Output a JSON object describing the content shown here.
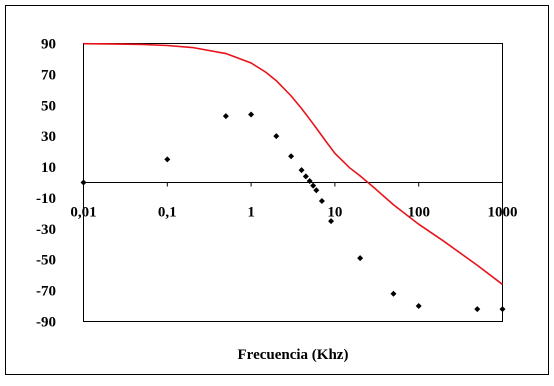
{
  "chart_data": {
    "type": "scatter",
    "title": "",
    "xlabel": "Frecuencia (Khz)",
    "ylabel": "",
    "x_scale": "log",
    "xlim": [
      0.01,
      1000
    ],
    "ylim": [
      -90,
      90
    ],
    "x_tick_labels": [
      "0,01",
      "0,1",
      "1",
      "10",
      "100",
      "1000"
    ],
    "x_tick_values": [
      0.01,
      0.1,
      1,
      10,
      100,
      1000
    ],
    "y_tick_values": [
      90,
      70,
      50,
      30,
      10,
      -10,
      -30,
      -50,
      -70,
      -90
    ],
    "y_tick_labels": [
      "90",
      "70",
      "50",
      "30",
      "10",
      "-10",
      "-30",
      "-50",
      "-70",
      "-90"
    ],
    "grid": false,
    "legend": "none",
    "series": [
      {
        "kind": "markers",
        "color": "#000000",
        "marker": "diamond",
        "x": [
          0.01,
          0.1,
          0.5,
          1,
          2,
          3,
          4,
          4.5,
          5,
          5.5,
          6,
          7,
          9,
          20,
          50,
          100,
          500,
          1000
        ],
        "y": [
          0,
          15,
          43,
          44,
          30,
          17,
          8,
          4,
          1,
          -2,
          -5,
          -12,
          -25,
          -49,
          -72,
          -80,
          -82,
          -82
        ]
      },
      {
        "kind": "line",
        "color": "#e8141b",
        "x": [
          0.01,
          0.02,
          0.05,
          0.1,
          0.2,
          0.5,
          1,
          1.5,
          2,
          3,
          4,
          5,
          6,
          8,
          10,
          15,
          20,
          30,
          50,
          100,
          200,
          500,
          1000
        ],
        "y": [
          89.9,
          89.7,
          89.4,
          88.7,
          87.4,
          83.5,
          77.4,
          71.4,
          65.9,
          56.1,
          47.9,
          41.0,
          35.2,
          25.9,
          18.9,
          9.5,
          4.3,
          -3.8,
          -14.4,
          -27.0,
          -38.1,
          -53.6,
          -66.0
        ]
      }
    ]
  }
}
